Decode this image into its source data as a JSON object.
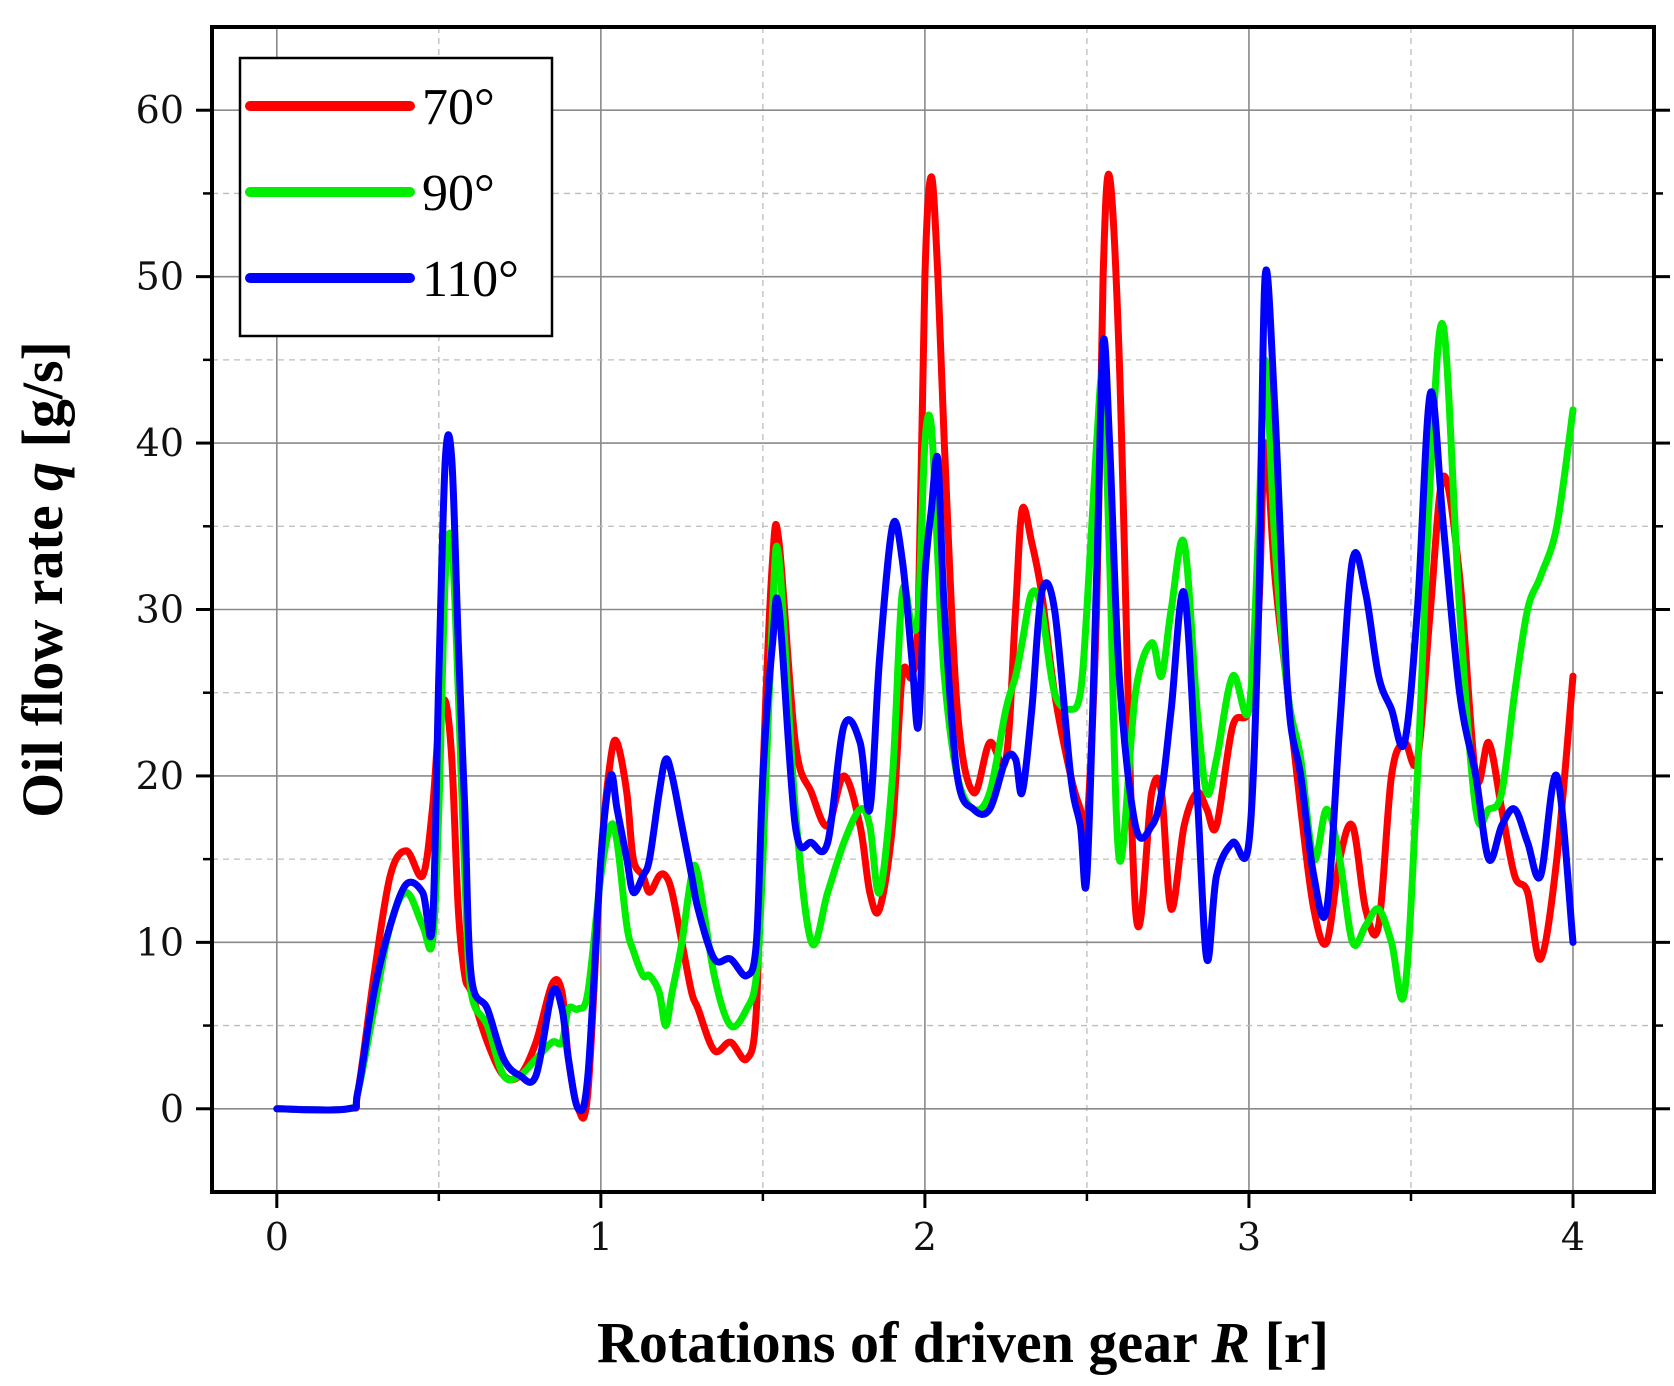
{
  "chart_data": {
    "type": "line",
    "title": "",
    "xlabel": "Rotations of driven gear R [r]",
    "xlabel_parts": {
      "prefix": "Rotations of driven gear ",
      "var": "R",
      "suffix": " [r]"
    },
    "ylabel": "Oil flow rate q [g/s]",
    "ylabel_parts": {
      "prefix": "Oil flow rate ",
      "var": "q",
      "suffix": " [g/s]"
    },
    "xlim": [
      -0.2,
      4.25
    ],
    "ylim": [
      -5,
      65
    ],
    "x_ticks": [
      0,
      1,
      2,
      3,
      4
    ],
    "x_tick_labels": [
      "0",
      "1",
      "2",
      "3",
      "4"
    ],
    "y_ticks": [
      0,
      10,
      20,
      30,
      40,
      50,
      60
    ],
    "y_tick_labels": [
      "0",
      "10",
      "20",
      "30",
      "40",
      "50",
      "60"
    ],
    "grid": true,
    "legend_position": "top-left",
    "series": [
      {
        "name": "70°",
        "color": "#ff0000",
        "x": [
          0,
          0.22,
          0.25,
          0.3,
          0.35,
          0.4,
          0.45,
          0.48,
          0.5,
          0.52,
          0.54,
          0.56,
          0.58,
          0.6,
          0.65,
          0.7,
          0.75,
          0.8,
          0.85,
          0.88,
          0.9,
          0.93,
          0.96,
          1.0,
          1.03,
          1.05,
          1.08,
          1.1,
          1.13,
          1.15,
          1.18,
          1.2,
          1.22,
          1.25,
          1.28,
          1.3,
          1.35,
          1.4,
          1.45,
          1.48,
          1.5,
          1.53,
          1.55,
          1.6,
          1.65,
          1.7,
          1.75,
          1.8,
          1.83,
          1.86,
          1.9,
          1.93,
          1.96,
          1.98,
          2.0,
          2.02,
          2.04,
          2.06,
          2.1,
          2.15,
          2.2,
          2.25,
          2.28,
          2.3,
          2.33,
          2.36,
          2.4,
          2.45,
          2.48,
          2.5,
          2.53,
          2.55,
          2.57,
          2.6,
          2.65,
          2.7,
          2.73,
          2.76,
          2.8,
          2.84,
          2.87,
          2.9,
          2.95,
          3.0,
          3.03,
          3.05,
          3.08,
          3.12,
          3.16,
          3.2,
          3.24,
          3.28,
          3.32,
          3.36,
          3.4,
          3.44,
          3.48,
          3.52,
          3.56,
          3.6,
          3.65,
          3.7,
          3.74,
          3.78,
          3.82,
          3.86,
          3.9,
          3.95,
          4.0
        ],
        "y": [
          0,
          0,
          1,
          8,
          14,
          15.5,
          14,
          18,
          23,
          24.5,
          21,
          12,
          8,
          7,
          4,
          2,
          2,
          4,
          7.5,
          7,
          3,
          0,
          1,
          15,
          21,
          22,
          19,
          15,
          14,
          13,
          14,
          14,
          13,
          10,
          7,
          6,
          3.5,
          4,
          3,
          6,
          20,
          33,
          34,
          22,
          19,
          17,
          20,
          17,
          13,
          12,
          17,
          26,
          26,
          30,
          50,
          56,
          50,
          40,
          24,
          19,
          22,
          21,
          30,
          36,
          34,
          31,
          25,
          20,
          18,
          17,
          30,
          50,
          56,
          45,
          12,
          19,
          19,
          12,
          17,
          19,
          18,
          17,
          23,
          24,
          30,
          40,
          32,
          25,
          18,
          12,
          10,
          15,
          17,
          12,
          11,
          20,
          22,
          21,
          30,
          38,
          32,
          20,
          22,
          18,
          14,
          13,
          9,
          15,
          26
        ]
      },
      {
        "name": "90°",
        "color": "#00ee00",
        "x": [
          0,
          0.22,
          0.25,
          0.3,
          0.35,
          0.4,
          0.45,
          0.48,
          0.5,
          0.52,
          0.54,
          0.56,
          0.58,
          0.6,
          0.65,
          0.7,
          0.75,
          0.8,
          0.85,
          0.88,
          0.9,
          0.93,
          0.96,
          1.0,
          1.03,
          1.05,
          1.08,
          1.1,
          1.13,
          1.15,
          1.18,
          1.2,
          1.22,
          1.25,
          1.28,
          1.3,
          1.35,
          1.4,
          1.45,
          1.48,
          1.5,
          1.53,
          1.55,
          1.6,
          1.65,
          1.7,
          1.75,
          1.8,
          1.83,
          1.86,
          1.9,
          1.93,
          1.96,
          1.98,
          2.0,
          2.02,
          2.04,
          2.06,
          2.1,
          2.15,
          2.2,
          2.25,
          2.28,
          2.3,
          2.33,
          2.36,
          2.4,
          2.45,
          2.48,
          2.5,
          2.53,
          2.55,
          2.57,
          2.6,
          2.65,
          2.7,
          2.73,
          2.76,
          2.8,
          2.84,
          2.87,
          2.9,
          2.95,
          3.0,
          3.03,
          3.05,
          3.08,
          3.12,
          3.16,
          3.2,
          3.24,
          3.28,
          3.32,
          3.36,
          3.4,
          3.44,
          3.48,
          3.52,
          3.56,
          3.6,
          3.65,
          3.7,
          3.74,
          3.78,
          3.82,
          3.86,
          3.9,
          3.95,
          4.0
        ],
        "y": [
          0,
          0,
          1,
          6,
          11,
          13,
          11,
          10,
          18,
          32,
          34,
          25,
          14,
          7,
          5,
          2,
          2,
          3,
          4,
          4,
          6,
          6,
          7,
          14,
          17,
          16,
          11,
          9.5,
          8,
          8,
          7,
          5,
          7,
          10,
          14,
          14,
          8,
          5,
          6,
          8,
          15,
          30,
          33,
          18,
          10,
          13,
          16,
          18,
          17,
          13,
          20,
          31,
          29,
          30,
          40,
          41,
          33,
          26,
          20,
          18,
          19,
          24,
          26,
          28,
          31,
          30,
          25,
          24,
          25,
          30,
          40,
          44,
          33,
          15,
          25,
          28,
          26,
          30,
          34,
          24,
          19,
          21,
          26,
          24,
          35,
          45,
          34,
          25,
          21,
          15,
          18,
          15,
          10,
          11,
          12,
          10,
          7,
          20,
          38,
          47,
          30,
          18,
          18,
          19,
          25,
          30,
          32,
          35,
          42
        ]
      },
      {
        "name": "110°",
        "color": "#0000ff",
        "x": [
          0,
          0.22,
          0.25,
          0.3,
          0.35,
          0.4,
          0.45,
          0.48,
          0.5,
          0.52,
          0.54,
          0.56,
          0.58,
          0.6,
          0.65,
          0.7,
          0.75,
          0.8,
          0.85,
          0.88,
          0.9,
          0.93,
          0.96,
          1.0,
          1.03,
          1.05,
          1.08,
          1.1,
          1.13,
          1.15,
          1.18,
          1.2,
          1.22,
          1.25,
          1.28,
          1.3,
          1.35,
          1.4,
          1.45,
          1.48,
          1.5,
          1.53,
          1.55,
          1.6,
          1.65,
          1.7,
          1.75,
          1.8,
          1.83,
          1.86,
          1.9,
          1.93,
          1.96,
          1.98,
          2.0,
          2.02,
          2.04,
          2.06,
          2.1,
          2.15,
          2.2,
          2.25,
          2.28,
          2.3,
          2.33,
          2.36,
          2.4,
          2.45,
          2.48,
          2.5,
          2.53,
          2.55,
          2.57,
          2.6,
          2.65,
          2.7,
          2.73,
          2.76,
          2.8,
          2.84,
          2.87,
          2.9,
          2.95,
          3.0,
          3.03,
          3.05,
          3.08,
          3.12,
          3.16,
          3.2,
          3.24,
          3.28,
          3.32,
          3.36,
          3.4,
          3.44,
          3.48,
          3.52,
          3.56,
          3.6,
          3.65,
          3.7,
          3.74,
          3.78,
          3.82,
          3.86,
          3.9,
          3.95,
          4.0
        ],
        "y": [
          0,
          0,
          1,
          7,
          11,
          13.5,
          13,
          11,
          26,
          39,
          39,
          28,
          18,
          8,
          6,
          3,
          2,
          2,
          7,
          6,
          3,
          0,
          2,
          15,
          20,
          18,
          15,
          13,
          14,
          15,
          19,
          21,
          20,
          17,
          14,
          12,
          9,
          9,
          8,
          10,
          20,
          28,
          30,
          17,
          16,
          16,
          23,
          22,
          18,
          27,
          35,
          33,
          27,
          23,
          32,
          36,
          39,
          30,
          20,
          18,
          18,
          21,
          21,
          19,
          24,
          31,
          30,
          20,
          17,
          14,
          32,
          46,
          40,
          26,
          17,
          17,
          19,
          24,
          31,
          19,
          9,
          14,
          16,
          16,
          30,
          50,
          42,
          25,
          20,
          14,
          12,
          23,
          33,
          31,
          26,
          24,
          22,
          30,
          43,
          35,
          25,
          20,
          15,
          17,
          18,
          16,
          14,
          20,
          10
        ]
      }
    ]
  }
}
